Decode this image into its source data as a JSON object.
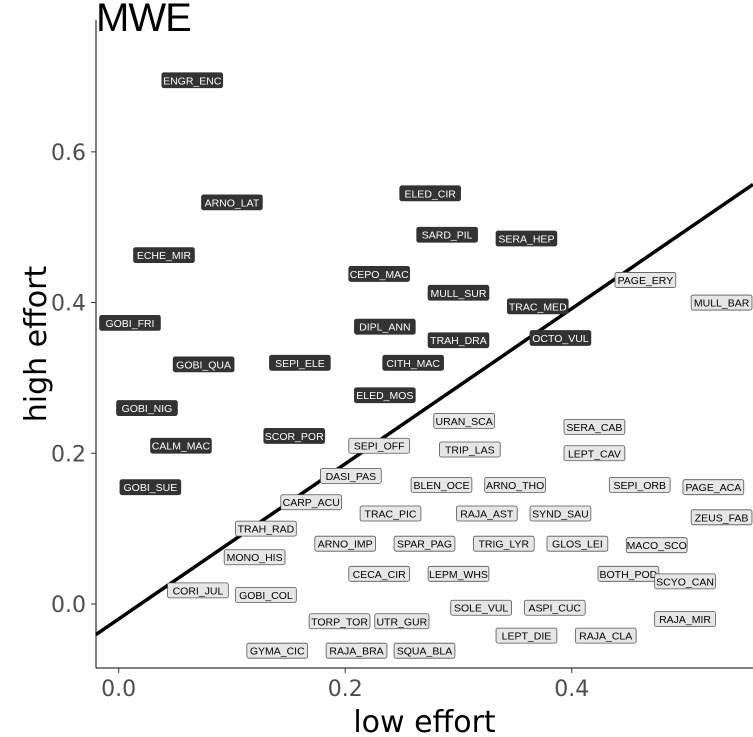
{
  "chart_data": {
    "type": "scatter",
    "title": "MWE",
    "xlabel": "low effort",
    "ylabel": "high effort",
    "xlim": [
      -0.02,
      0.56
    ],
    "ylim": [
      -0.085,
      0.775
    ],
    "x_ticks": [
      0.0,
      0.2,
      0.4
    ],
    "x_tick_labels": [
      "0.0",
      "0.2",
      "0.4"
    ],
    "y_ticks": [
      0.0,
      0.2,
      0.4,
      0.6
    ],
    "y_tick_labels": [
      "0.0",
      "0.2",
      "0.4",
      "0.6"
    ],
    "grid": false,
    "reference_line": {
      "intercept": -0.02,
      "slope": 1.03
    },
    "series": [
      {
        "group": "above-line",
        "fill": "#333333",
        "text_color": "#ffffff",
        "points": [
          {
            "label": "ENGR_ENC",
            "x": 0.065,
            "y": 0.695
          },
          {
            "label": "ELED_CIR",
            "x": 0.275,
            "y": 0.545
          },
          {
            "label": "ARNO_LAT",
            "x": 0.1,
            "y": 0.533
          },
          {
            "label": "SARD_PIL",
            "x": 0.29,
            "y": 0.49
          },
          {
            "label": "SERA_HEP",
            "x": 0.36,
            "y": 0.485
          },
          {
            "label": "ECHE_MIR",
            "x": 0.04,
            "y": 0.463
          },
          {
            "label": "CEPO_MAC",
            "x": 0.23,
            "y": 0.438
          },
          {
            "label": "MULL_SUR",
            "x": 0.3,
            "y": 0.413
          },
          {
            "label": "TRAC_MED",
            "x": 0.37,
            "y": 0.395
          },
          {
            "label": "GOBI_FRI",
            "x": 0.01,
            "y": 0.373
          },
          {
            "label": "DIPL_ANN",
            "x": 0.235,
            "y": 0.368
          },
          {
            "label": "TRAH_DRA",
            "x": 0.3,
            "y": 0.35
          },
          {
            "label": "OCTO_VUL",
            "x": 0.39,
            "y": 0.353
          },
          {
            "label": "GOBI_QUA",
            "x": 0.075,
            "y": 0.318
          },
          {
            "label": "SEPI_ELE",
            "x": 0.16,
            "y": 0.32
          },
          {
            "label": "CITH_MAC",
            "x": 0.26,
            "y": 0.32
          },
          {
            "label": "GOBI_NIG",
            "x": 0.025,
            "y": 0.26
          },
          {
            "label": "ELED_MOS",
            "x": 0.235,
            "y": 0.277
          },
          {
            "label": "SCOR_POR",
            "x": 0.155,
            "y": 0.223
          },
          {
            "label": "CALM_MAC",
            "x": 0.055,
            "y": 0.21
          },
          {
            "label": "GOBI_SUE",
            "x": 0.028,
            "y": 0.155
          }
        ]
      },
      {
        "group": "below-line",
        "fill": "#e6e6e6",
        "text_color": "#000000",
        "points": [
          {
            "label": "PAGE_ERY",
            "x": 0.465,
            "y": 0.43
          },
          {
            "label": "MULL_BAR",
            "x": 0.555,
            "y": 0.4
          },
          {
            "label": "URAN_SCA",
            "x": 0.305,
            "y": 0.243
          },
          {
            "label": "SERA_CAB",
            "x": 0.42,
            "y": 0.235
          },
          {
            "label": "SEPI_OFF",
            "x": 0.23,
            "y": 0.21
          },
          {
            "label": "TRIP_LAS",
            "x": 0.31,
            "y": 0.205
          },
          {
            "label": "LEPT_CAV",
            "x": 0.42,
            "y": 0.2
          },
          {
            "label": "DASI_PAS",
            "x": 0.205,
            "y": 0.17
          },
          {
            "label": "BLEN_OCE",
            "x": 0.285,
            "y": 0.158
          },
          {
            "label": "ARNO_THO",
            "x": 0.35,
            "y": 0.158
          },
          {
            "label": "SEPI_ORB",
            "x": 0.46,
            "y": 0.158
          },
          {
            "label": "PAGE_ACA",
            "x": 0.525,
            "y": 0.155
          },
          {
            "label": "CARP_ACU",
            "x": 0.17,
            "y": 0.135
          },
          {
            "label": "TRAC_PIC",
            "x": 0.24,
            "y": 0.12
          },
          {
            "label": "RAJA_AST",
            "x": 0.325,
            "y": 0.12
          },
          {
            "label": "SYND_SAU",
            "x": 0.39,
            "y": 0.12
          },
          {
            "label": "ZEUS_FAB",
            "x": 0.55,
            "y": 0.115
          },
          {
            "label": "TRAH_RAD",
            "x": 0.13,
            "y": 0.1
          },
          {
            "label": "ARNO_IMP",
            "x": 0.2,
            "y": 0.08
          },
          {
            "label": "SPAR_PAG",
            "x": 0.27,
            "y": 0.08
          },
          {
            "label": "TRIG_LYR",
            "x": 0.34,
            "y": 0.08
          },
          {
            "label": "GLOS_LEI",
            "x": 0.405,
            "y": 0.08
          },
          {
            "label": "MACO_SCO",
            "x": 0.475,
            "y": 0.078
          },
          {
            "label": "MONO_HIS",
            "x": 0.12,
            "y": 0.062
          },
          {
            "label": "CECA_CIR",
            "x": 0.23,
            "y": 0.04
          },
          {
            "label": "LEPM_WHS",
            "x": 0.3,
            "y": 0.04
          },
          {
            "label": "BOTH_POD",
            "x": 0.45,
            "y": 0.04
          },
          {
            "label": "SCYO_CAN",
            "x": 0.5,
            "y": 0.03
          },
          {
            "label": "CORI_JUL",
            "x": 0.07,
            "y": 0.018
          },
          {
            "label": "GOBI_COL",
            "x": 0.13,
            "y": 0.012
          },
          {
            "label": "SOLE_VUL",
            "x": 0.32,
            "y": -0.005
          },
          {
            "label": "ASPI_CUC",
            "x": 0.385,
            "y": -0.005
          },
          {
            "label": "TORP_TOR",
            "x": 0.195,
            "y": -0.023
          },
          {
            "label": "UTR_GUR",
            "x": 0.25,
            "y": -0.023
          },
          {
            "label": "RAJA_MIR",
            "x": 0.5,
            "y": -0.02
          },
          {
            "label": "LEPT_DIE",
            "x": 0.36,
            "y": -0.042
          },
          {
            "label": "RAJA_CLA",
            "x": 0.43,
            "y": -0.042
          },
          {
            "label": "GYMA_CIC",
            "x": 0.14,
            "y": -0.062
          },
          {
            "label": "RAJA_BRA",
            "x": 0.21,
            "y": -0.062
          },
          {
            "label": "SQUA_BLA",
            "x": 0.27,
            "y": -0.062
          }
        ]
      }
    ]
  }
}
